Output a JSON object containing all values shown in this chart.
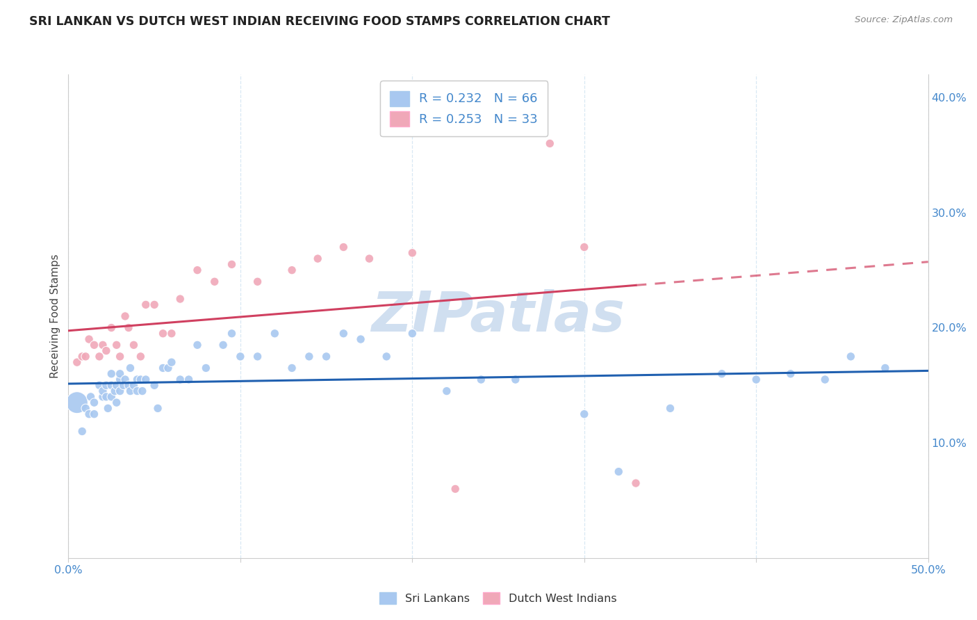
{
  "title": "SRI LANKAN VS DUTCH WEST INDIAN RECEIVING FOOD STAMPS CORRELATION CHART",
  "source": "Source: ZipAtlas.com",
  "ylabel": "Receiving Food Stamps",
  "xlim": [
    0.0,
    0.5
  ],
  "ylim": [
    0.0,
    0.42
  ],
  "xticks": [
    0.0,
    0.1,
    0.2,
    0.3,
    0.4,
    0.5
  ],
  "xticklabels_edge": [
    "0.0%",
    "",
    "",
    "",
    "",
    "50.0%"
  ],
  "yticks_right": [
    0.1,
    0.2,
    0.3,
    0.4
  ],
  "yticklabels_right": [
    "10.0%",
    "20.0%",
    "30.0%",
    "40.0%"
  ],
  "blue_R": 0.232,
  "blue_N": 66,
  "pink_R": 0.253,
  "pink_N": 33,
  "blue_color": "#a8c8f0",
  "pink_color": "#f0a8b8",
  "blue_line_color": "#2060b0",
  "pink_line_color": "#d04060",
  "watermark_color": "#d0dff0",
  "blue_label": "Sri Lankans",
  "pink_label": "Dutch West Indians",
  "sri_lankan_x": [
    0.005,
    0.008,
    0.01,
    0.012,
    0.013,
    0.015,
    0.015,
    0.018,
    0.02,
    0.02,
    0.022,
    0.022,
    0.023,
    0.025,
    0.025,
    0.025,
    0.027,
    0.028,
    0.028,
    0.03,
    0.03,
    0.03,
    0.032,
    0.033,
    0.035,
    0.036,
    0.036,
    0.038,
    0.04,
    0.04,
    0.042,
    0.043,
    0.045,
    0.05,
    0.052,
    0.055,
    0.058,
    0.06,
    0.065,
    0.07,
    0.075,
    0.08,
    0.09,
    0.095,
    0.1,
    0.11,
    0.12,
    0.13,
    0.14,
    0.15,
    0.16,
    0.17,
    0.185,
    0.2,
    0.22,
    0.24,
    0.26,
    0.3,
    0.32,
    0.35,
    0.38,
    0.4,
    0.42,
    0.44,
    0.455,
    0.475
  ],
  "sri_lankan_y": [
    0.135,
    0.11,
    0.13,
    0.125,
    0.14,
    0.125,
    0.135,
    0.15,
    0.14,
    0.145,
    0.14,
    0.15,
    0.13,
    0.15,
    0.14,
    0.16,
    0.145,
    0.15,
    0.135,
    0.155,
    0.145,
    0.16,
    0.15,
    0.155,
    0.15,
    0.145,
    0.165,
    0.15,
    0.145,
    0.155,
    0.155,
    0.145,
    0.155,
    0.15,
    0.13,
    0.165,
    0.165,
    0.17,
    0.155,
    0.155,
    0.185,
    0.165,
    0.185,
    0.195,
    0.175,
    0.175,
    0.195,
    0.165,
    0.175,
    0.175,
    0.195,
    0.19,
    0.175,
    0.195,
    0.145,
    0.155,
    0.155,
    0.125,
    0.075,
    0.13,
    0.16,
    0.155,
    0.16,
    0.155,
    0.175,
    0.165
  ],
  "sri_lankan_size": [
    500,
    80,
    80,
    80,
    80,
    80,
    80,
    80,
    80,
    80,
    80,
    80,
    80,
    80,
    80,
    80,
    80,
    80,
    80,
    80,
    80,
    80,
    80,
    80,
    80,
    80,
    80,
    80,
    80,
    80,
    80,
    80,
    80,
    80,
    80,
    80,
    80,
    80,
    80,
    80,
    80,
    80,
    80,
    80,
    80,
    80,
    80,
    80,
    80,
    80,
    80,
    80,
    80,
    80,
    80,
    80,
    80,
    80,
    80,
    80,
    80,
    80,
    80,
    80,
    80,
    80
  ],
  "dutch_x": [
    0.005,
    0.008,
    0.01,
    0.012,
    0.015,
    0.018,
    0.02,
    0.022,
    0.025,
    0.028,
    0.03,
    0.033,
    0.035,
    0.038,
    0.042,
    0.045,
    0.05,
    0.055,
    0.06,
    0.065,
    0.075,
    0.085,
    0.095,
    0.11,
    0.13,
    0.145,
    0.16,
    0.175,
    0.2,
    0.225,
    0.28,
    0.3,
    0.33
  ],
  "dutch_y": [
    0.17,
    0.175,
    0.175,
    0.19,
    0.185,
    0.175,
    0.185,
    0.18,
    0.2,
    0.185,
    0.175,
    0.21,
    0.2,
    0.185,
    0.175,
    0.22,
    0.22,
    0.195,
    0.195,
    0.225,
    0.25,
    0.24,
    0.255,
    0.24,
    0.25,
    0.26,
    0.27,
    0.26,
    0.265,
    0.06,
    0.36,
    0.27,
    0.065
  ],
  "dutch_size": [
    80,
    80,
    80,
    80,
    80,
    80,
    80,
    80,
    80,
    80,
    80,
    80,
    80,
    80,
    80,
    80,
    80,
    80,
    80,
    80,
    80,
    80,
    80,
    80,
    80,
    80,
    80,
    80,
    80,
    80,
    80,
    80,
    80
  ],
  "grid_color": "#d8e8f4",
  "spine_color": "#cccccc",
  "tick_color": "#4488cc"
}
